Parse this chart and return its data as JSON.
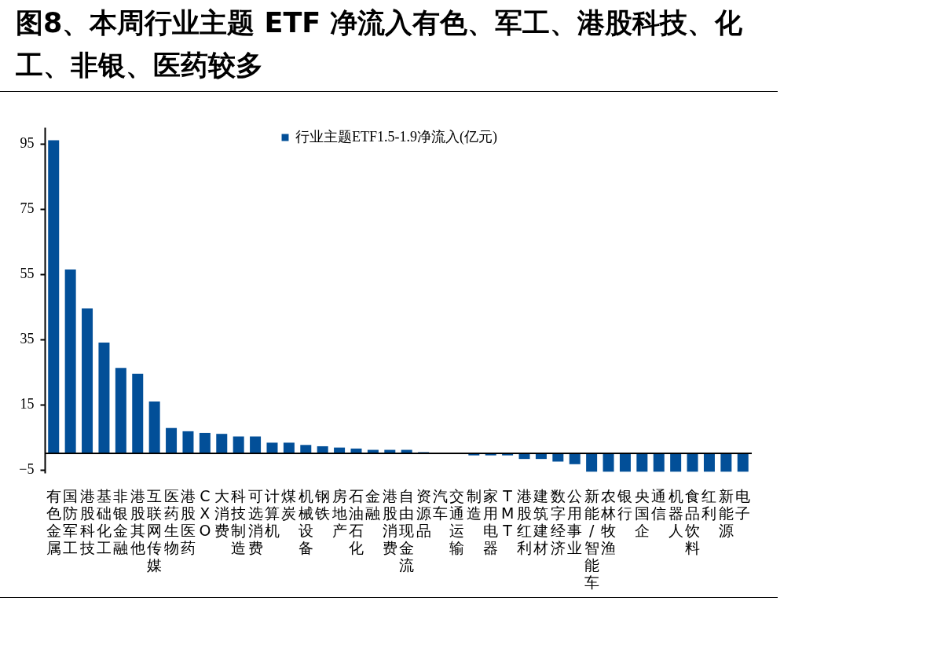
{
  "chart_data": {
    "type": "bar",
    "title": "图8、本周行业主题 ETF 净流入有色、军工、港股科技、化工、非银、医药较多",
    "categories": [
      "有色金属",
      "国防军工",
      "港股科技",
      "基础化工",
      "非银金融",
      "港股其他",
      "互联网传媒",
      "医药生物",
      "港股医药",
      "CXO",
      "大消费",
      "科技制造",
      "可选消费",
      "计算机",
      "煤炭",
      "机械设备",
      "钢铁",
      "房地产",
      "石油石化",
      "金融",
      "港股消费",
      "自由现金流",
      "资源品",
      "汽车",
      "交通运输",
      "制造",
      "家用电器",
      "TMT",
      "港股红利",
      "建筑建材",
      "数字经济",
      "公用事业",
      "新能/智能车",
      "农林牧渔",
      "银行",
      "央国企",
      "通信",
      "机器人",
      "食品饮料",
      "红利",
      "新能源",
      "电子"
    ],
    "series": [
      {
        "name": "行业主题ETF1.5-1.9净流入(亿元)",
        "color": "#024f98",
        "values": [
          96,
          56.4,
          44.5,
          34,
          26.2,
          24.4,
          15.9,
          7.8,
          6.8,
          6.3,
          6.0,
          5.2,
          5.2,
          3.3,
          3.3,
          2.6,
          2.2,
          1.8,
          1.5,
          1.1,
          1.1,
          1.1,
          0.4,
          null,
          null,
          -0.6,
          -0.6,
          -0.6,
          -1.7,
          -1.7,
          -2.5,
          -3.3,
          -5.6,
          -5.6,
          -5.6,
          -5.6,
          -5.6,
          -5.6,
          -5.6,
          -5.6,
          -5.6,
          -5.6
        ]
      }
    ],
    "ylim": [
      -6,
      100
    ],
    "yticks": [
      -5,
      15,
      35,
      55,
      75,
      95
    ],
    "grid": false,
    "legend": "top"
  }
}
